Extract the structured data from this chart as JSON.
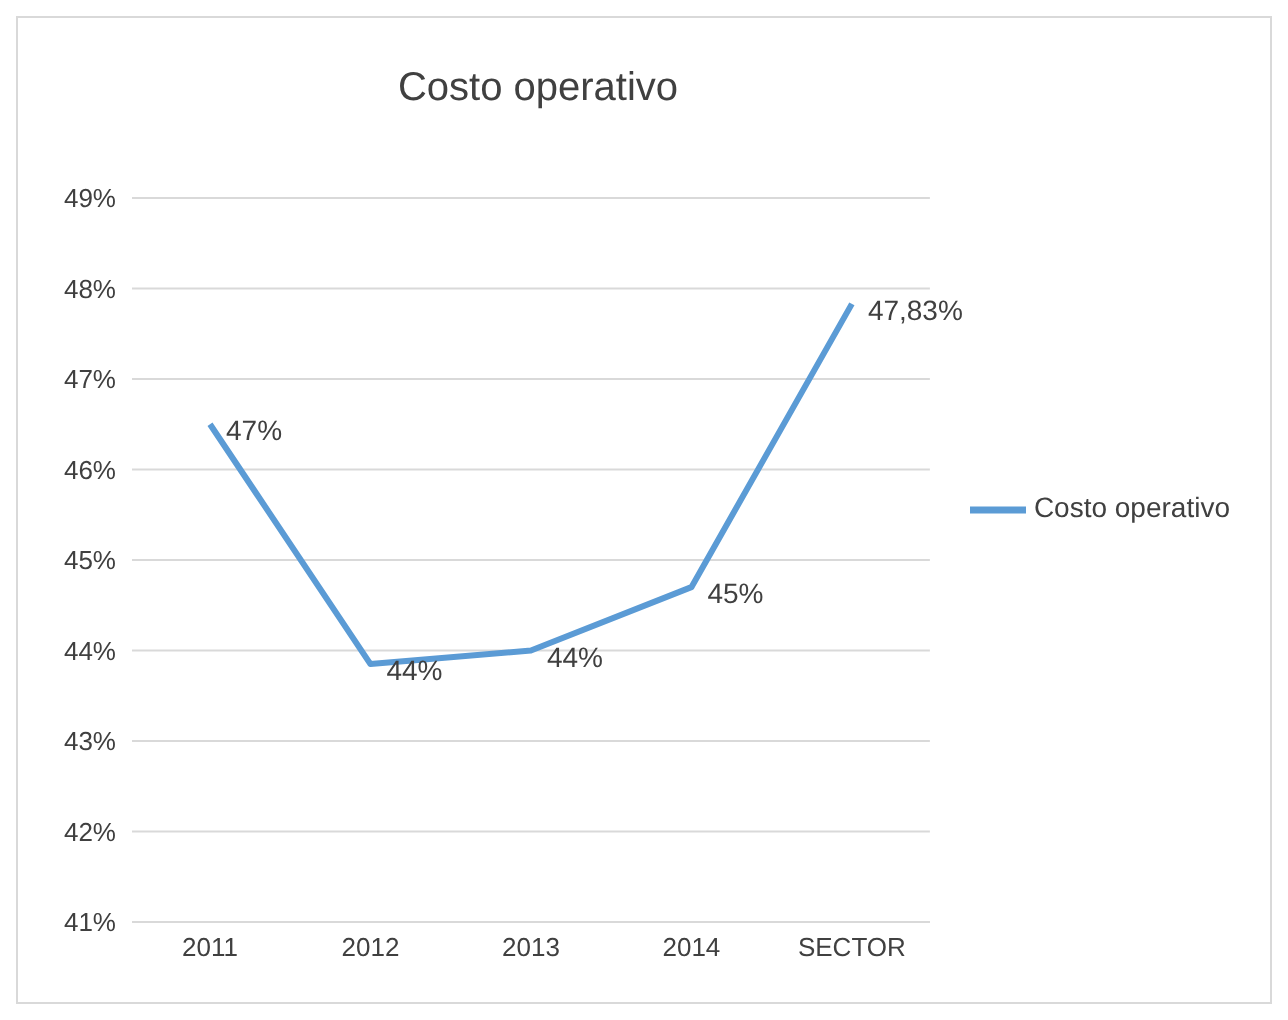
{
  "chart_data": {
    "type": "line",
    "title": "Costo operativo",
    "categories": [
      "2011",
      "2012",
      "2013",
      "2014",
      "SECTOR"
    ],
    "series": [
      {
        "name": "Costo operativo",
        "color": "#5b9bd5",
        "values": [
          46.5,
          43.85,
          44.0,
          44.7,
          47.83
        ],
        "value_labels": [
          "47%",
          "44%",
          "44%",
          "45%",
          "47,83%"
        ]
      }
    ],
    "ylim": [
      41,
      49
    ],
    "yticks": [
      {
        "value": 41,
        "label": "41%"
      },
      {
        "value": 42,
        "label": "42%"
      },
      {
        "value": 43,
        "label": "43%"
      },
      {
        "value": 44,
        "label": "44%"
      },
      {
        "value": 45,
        "label": "45%"
      },
      {
        "value": 46,
        "label": "46%"
      },
      {
        "value": 47,
        "label": "47%"
      },
      {
        "value": 48,
        "label": "48%"
      },
      {
        "value": 49,
        "label": "49%"
      }
    ],
    "grid": "y",
    "legend": "right",
    "marker": "none",
    "line_style": "solid"
  }
}
